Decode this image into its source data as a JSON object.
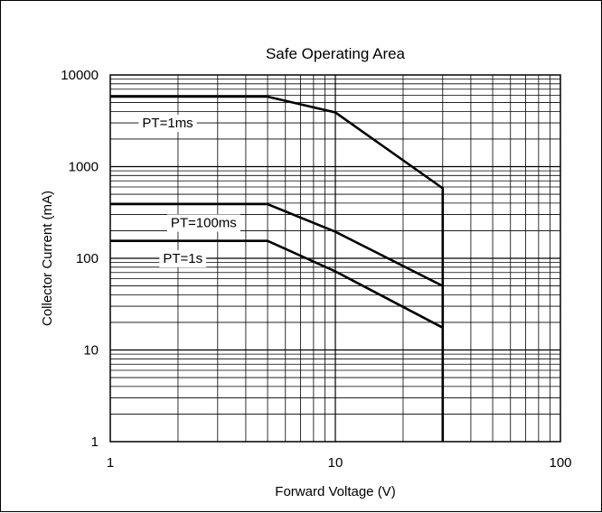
{
  "chart_data": {
    "type": "line",
    "title": "Safe Operating Area",
    "xlabel": "Forward Voltage (V)",
    "ylabel": "Collector Current (mA)",
    "x_scale": "log",
    "y_scale": "log",
    "xlim": [
      1,
      100
    ],
    "ylim": [
      1,
      10000
    ],
    "grid": true,
    "x_ticks": [
      "1",
      "10",
      "100"
    ],
    "y_ticks": [
      "1",
      "10",
      "100",
      "1000",
      "10000"
    ],
    "series": [
      {
        "name": "PT=1ms",
        "x": [
          1,
          5,
          10,
          30,
          30
        ],
        "y": [
          5800,
          5800,
          3900,
          580,
          1
        ]
      },
      {
        "name": "PT=100ms",
        "x": [
          1,
          5,
          10,
          30
        ],
        "y": [
          390,
          390,
          195,
          50
        ]
      },
      {
        "name": "PT=1s",
        "x": [
          1,
          5,
          10,
          30
        ],
        "y": [
          155,
          155,
          72,
          17.5
        ]
      }
    ],
    "line_color": "#000000",
    "grid_color": "#000000"
  }
}
